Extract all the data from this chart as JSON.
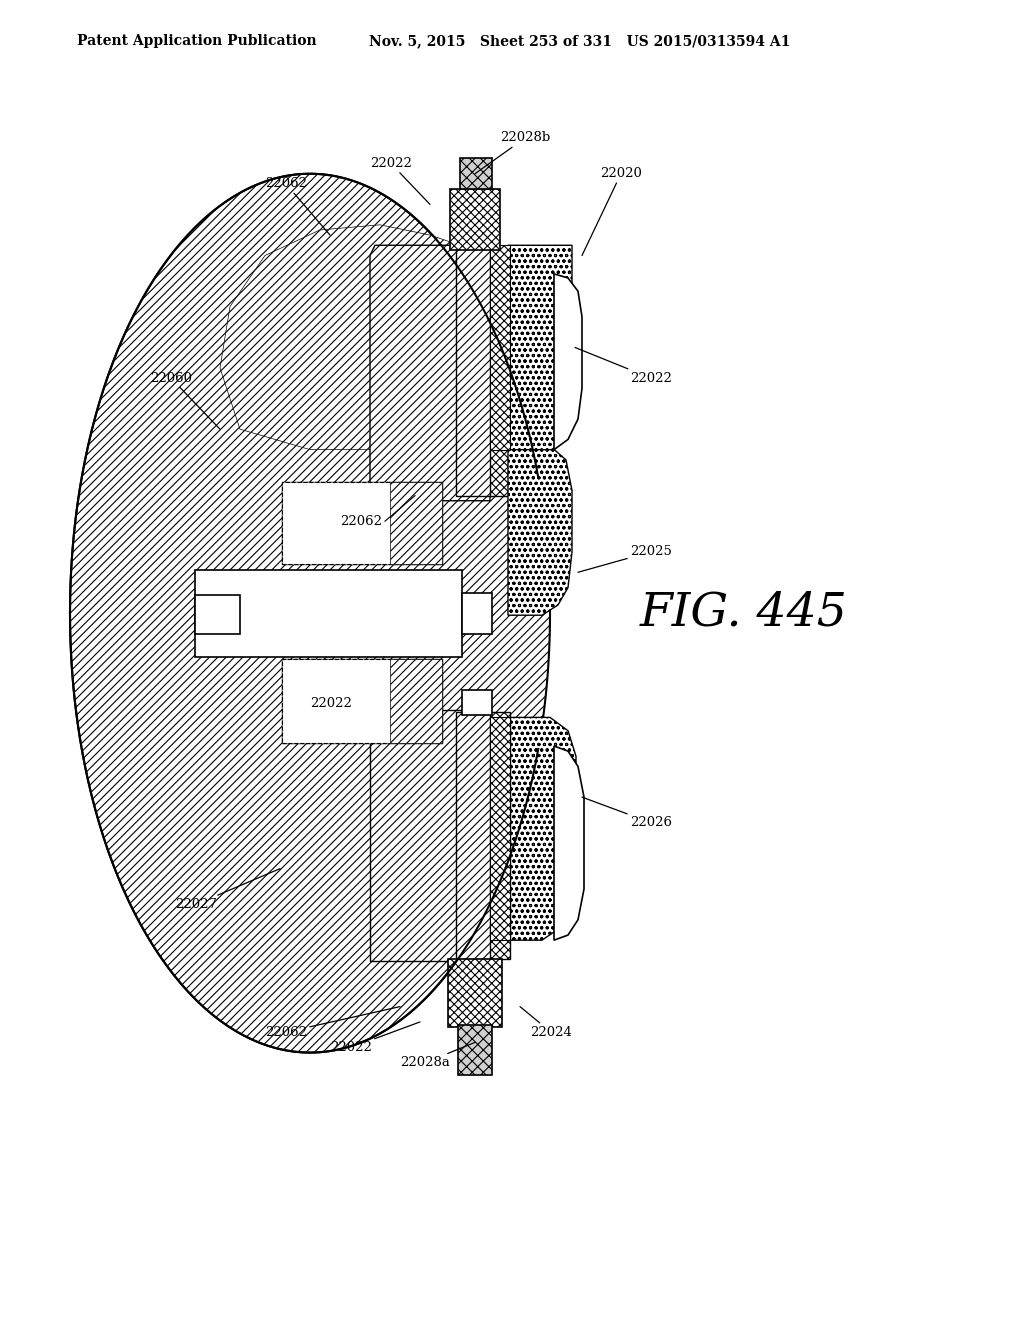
{
  "header_left": "Patent Application Publication",
  "header_right": "Nov. 5, 2015   Sheet 253 of 331   US 2015/0313594 A1",
  "fig_label": "FIG. 445",
  "bg": "#ffffff",
  "lc": "#000000"
}
